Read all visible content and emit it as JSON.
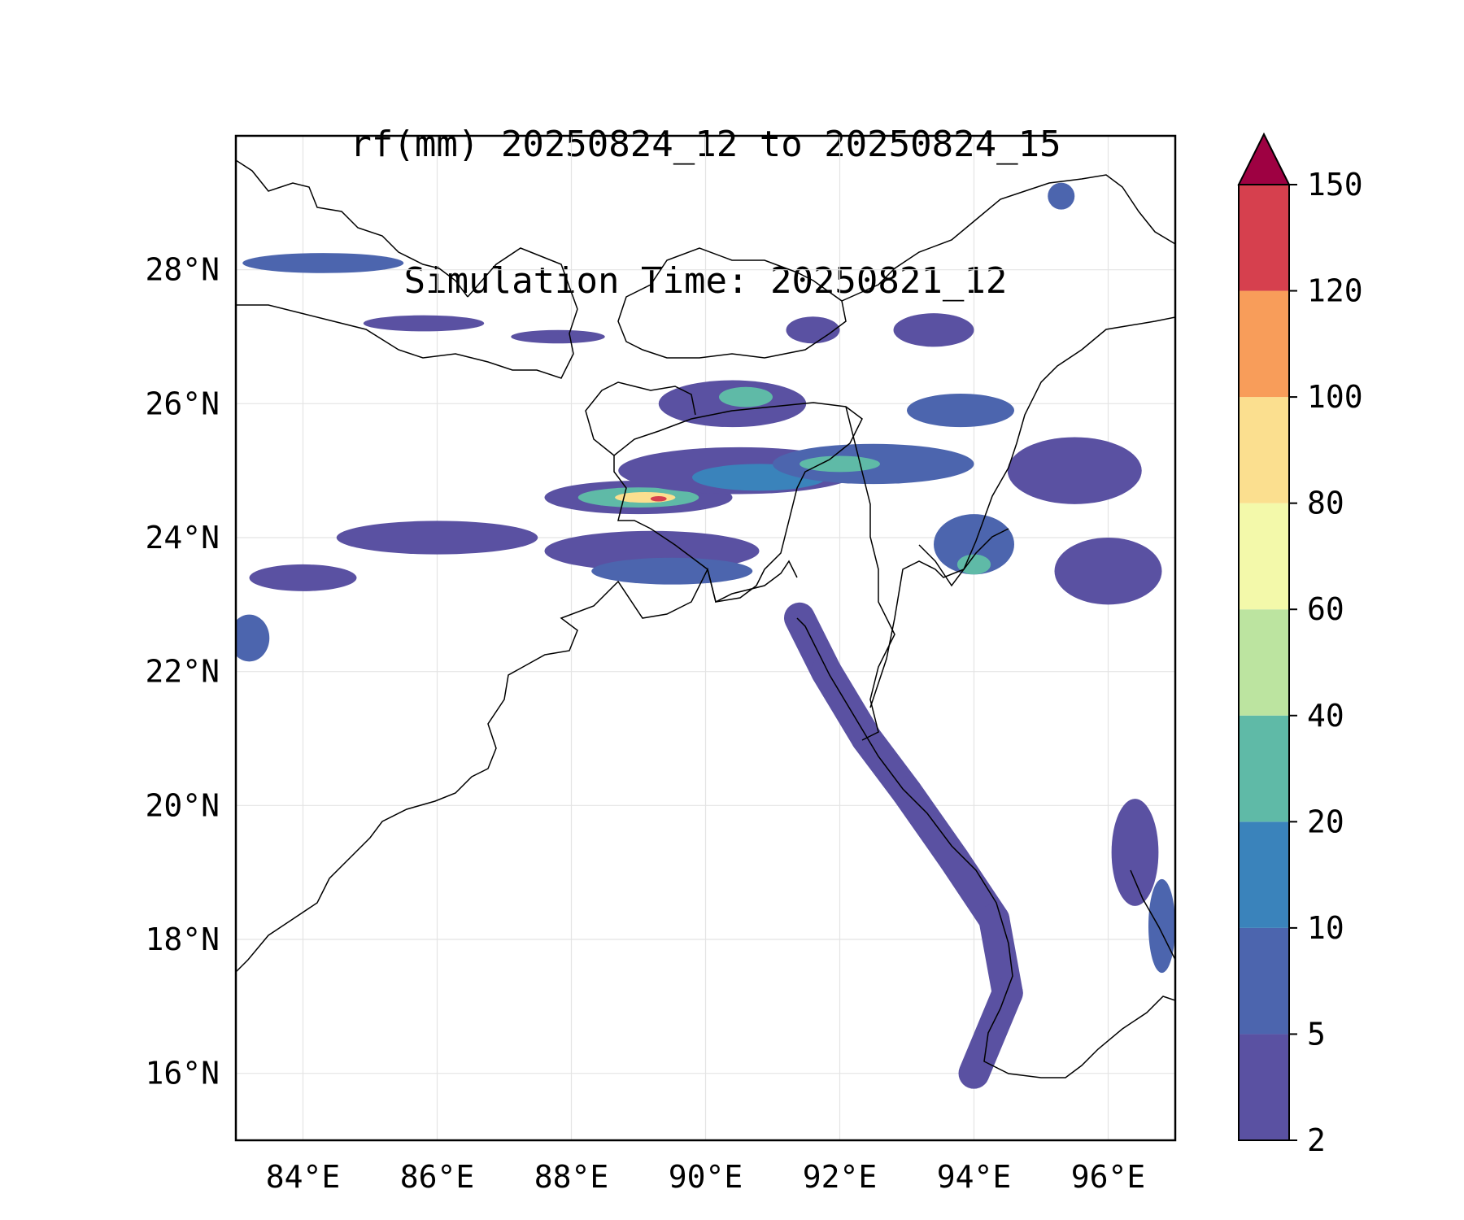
{
  "title": {
    "line1": "rf(mm) 20250824_12 to 20250824_15",
    "line2": "Simulation Time: 20250821_12"
  },
  "map": {
    "lon_range": [
      83.0,
      97.0
    ],
    "lat_range": [
      15.0,
      30.0
    ],
    "lon_ticks": [
      "84°E",
      "86°E",
      "88°E",
      "90°E",
      "92°E",
      "94°E",
      "96°E"
    ],
    "lat_ticks": [
      "16°N",
      "18°N",
      "20°N",
      "22°N",
      "24°N",
      "26°N",
      "28°N"
    ],
    "gridlines": true
  },
  "colorbar": {
    "levels": [
      "2",
      "5",
      "10",
      "20",
      "40",
      "60",
      "80",
      "100",
      "120",
      "150"
    ],
    "colors": [
      "#5a51a2",
      "#4c65ae",
      "#3a83bb",
      "#5fbaa7",
      "#bce4a0",
      "#f3f9aa",
      "#fbdf8f",
      "#f89d5a",
      "#d6404e"
    ],
    "extend_color": "#9e0142"
  },
  "rain_cells": [
    {
      "lon": 89.0,
      "lat": 24.6,
      "rx": 1.4,
      "ry": 0.25,
      "level": 0
    },
    {
      "lon": 89.0,
      "lat": 24.6,
      "rx": 0.9,
      "ry": 0.15,
      "level": 3
    },
    {
      "lon": 89.1,
      "lat": 24.6,
      "rx": 0.45,
      "ry": 0.08,
      "level": 6
    },
    {
      "lon": 89.3,
      "lat": 24.58,
      "rx": 0.12,
      "ry": 0.04,
      "level": 8
    },
    {
      "lon": 90.5,
      "lat": 25.0,
      "rx": 1.8,
      "ry": 0.35,
      "level": 0
    },
    {
      "lon": 90.8,
      "lat": 24.9,
      "rx": 1.0,
      "ry": 0.2,
      "level": 2
    },
    {
      "lon": 90.4,
      "lat": 26.0,
      "rx": 1.1,
      "ry": 0.35,
      "level": 0
    },
    {
      "lon": 90.6,
      "lat": 26.1,
      "rx": 0.4,
      "ry": 0.15,
      "level": 3
    },
    {
      "lon": 92.5,
      "lat": 25.1,
      "rx": 1.5,
      "ry": 0.3,
      "level": 1
    },
    {
      "lon": 92.0,
      "lat": 25.1,
      "rx": 0.6,
      "ry": 0.12,
      "level": 3
    },
    {
      "lon": 94.0,
      "lat": 23.9,
      "rx": 0.6,
      "ry": 0.45,
      "level": 1
    },
    {
      "lon": 94.0,
      "lat": 23.6,
      "rx": 0.25,
      "ry": 0.15,
      "level": 3
    },
    {
      "lon": 93.8,
      "lat": 25.9,
      "rx": 0.8,
      "ry": 0.25,
      "level": 1
    },
    {
      "lon": 89.2,
      "lat": 23.8,
      "rx": 1.6,
      "ry": 0.3,
      "level": 0
    },
    {
      "lon": 89.5,
      "lat": 23.5,
      "rx": 1.2,
      "ry": 0.2,
      "level": 1
    },
    {
      "lon": 84.3,
      "lat": 28.1,
      "rx": 1.2,
      "ry": 0.15,
      "level": 1
    },
    {
      "lon": 85.8,
      "lat": 27.2,
      "rx": 0.9,
      "ry": 0.12,
      "level": 0
    },
    {
      "lon": 87.8,
      "lat": 27.0,
      "rx": 0.7,
      "ry": 0.1,
      "level": 0
    },
    {
      "lon": 86.0,
      "lat": 24.0,
      "rx": 1.5,
      "ry": 0.25,
      "level": 0
    },
    {
      "lon": 84.0,
      "lat": 23.4,
      "rx": 0.8,
      "ry": 0.2,
      "level": 0
    },
    {
      "lon": 83.2,
      "lat": 22.5,
      "rx": 0.3,
      "ry": 0.35,
      "level": 1
    },
    {
      "lon": 93.4,
      "lat": 27.1,
      "rx": 0.6,
      "ry": 0.25,
      "level": 0
    },
    {
      "lon": 91.6,
      "lat": 27.1,
      "rx": 0.4,
      "ry": 0.2,
      "level": 0
    },
    {
      "lon": 95.5,
      "lat": 25.0,
      "rx": 1.0,
      "ry": 0.5,
      "level": 0
    },
    {
      "lon": 96.0,
      "lat": 23.5,
      "rx": 0.8,
      "ry": 0.5,
      "level": 0
    },
    {
      "lon": 96.4,
      "lat": 19.3,
      "rx": 0.35,
      "ry": 0.8,
      "level": 0
    },
    {
      "lon": 96.8,
      "lat": 18.2,
      "rx": 0.2,
      "ry": 0.7,
      "level": 1
    },
    {
      "lon": 95.3,
      "lat": 29.1,
      "rx": 0.2,
      "ry": 0.2,
      "level": 1
    }
  ],
  "arakan_band": {
    "lons": [
      91.4,
      91.8,
      92.4,
      93.0,
      93.7,
      94.3,
      94.5,
      94.0
    ],
    "lats": [
      22.8,
      22.0,
      21.0,
      20.2,
      19.2,
      18.3,
      17.2,
      16.0
    ],
    "level": 0
  }
}
